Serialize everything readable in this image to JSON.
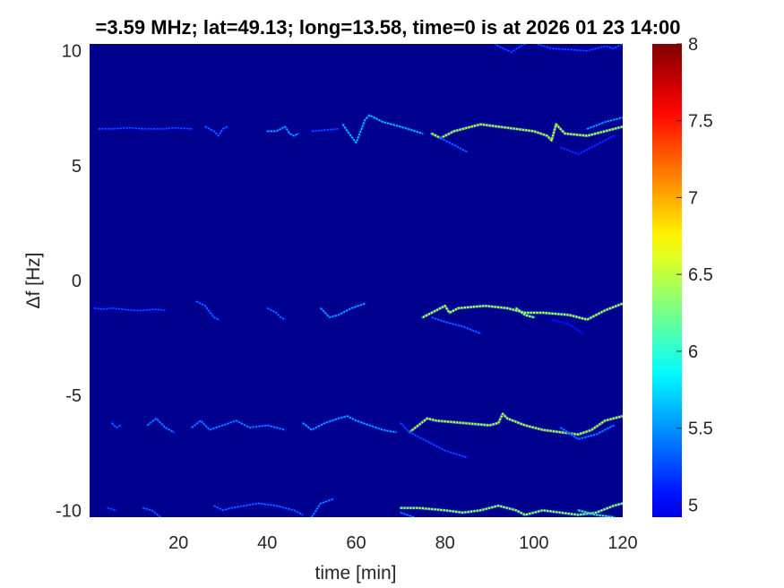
{
  "chart_data": {
    "type": "heatmap",
    "title": "=3.59 MHz;  lat=49.13; long=13.58, time=0 is at 2026 01 23 14:00",
    "xlabel": "time [min]",
    "ylabel": "Δf [Hz]",
    "xlim": [
      0,
      120
    ],
    "ylim": [
      -10.3,
      10.3
    ],
    "xticks": [
      "20",
      "40",
      "60",
      "80",
      "100",
      "120"
    ],
    "yticks": [
      "10",
      "5",
      "0",
      "-5",
      "-10"
    ],
    "colorbar": {
      "range": [
        4.92,
        8
      ],
      "ticks": [
        "8",
        "7.5",
        "7",
        "6.5",
        "6",
        "5.5",
        "5"
      ],
      "colormap": "jet"
    },
    "background_value": 4.95,
    "background_color": "#00008f",
    "traces": [
      {
        "name": "trace-upper-right",
        "points": [
          [
            90,
            10.5
          ],
          [
            92,
            10.2
          ],
          [
            95,
            9.95
          ],
          [
            97,
            10.2
          ],
          [
            99,
            10.4
          ],
          [
            104,
            10.1
          ],
          [
            112,
            10.0
          ],
          [
            116,
            10.2
          ],
          [
            118,
            10.1
          ],
          [
            120,
            10.3
          ]
        ],
        "intensity": 5.6
      },
      {
        "name": "trace-plus6-a",
        "points": [
          [
            2,
            6.6
          ],
          [
            5,
            6.6
          ],
          [
            9,
            6.65
          ],
          [
            12,
            6.6
          ],
          [
            17,
            6.6
          ],
          [
            19,
            6.65
          ],
          [
            23,
            6.6
          ]
        ],
        "intensity": 5.6
      },
      {
        "name": "trace-plus6-b",
        "points": [
          [
            26,
            6.7
          ],
          [
            28,
            6.5
          ],
          [
            29,
            6.3
          ],
          [
            30,
            6.6
          ],
          [
            31,
            6.7
          ]
        ],
        "intensity": 5.7
      },
      {
        "name": "trace-plus6-c",
        "points": [
          [
            40,
            6.5
          ],
          [
            42,
            6.5
          ],
          [
            44,
            6.7
          ],
          [
            45,
            6.4
          ],
          [
            46,
            6.3
          ],
          [
            47,
            6.4
          ]
        ],
        "intensity": 5.9
      },
      {
        "name": "trace-plus6-d",
        "points": [
          [
            50,
            6.5
          ],
          [
            53,
            6.55
          ],
          [
            56,
            6.6
          ]
        ],
        "intensity": 5.6
      },
      {
        "name": "trace-plus6-e",
        "points": [
          [
            57,
            6.8
          ],
          [
            58,
            6.5
          ],
          [
            60,
            6.0
          ],
          [
            61,
            6.5
          ],
          [
            62,
            7.0
          ],
          [
            63,
            7.2
          ],
          [
            66,
            6.9
          ],
          [
            70,
            6.7
          ],
          [
            75,
            6.4
          ]
        ],
        "intensity": 6.0
      },
      {
        "name": "trace-plus6-f",
        "points": [
          [
            77,
            6.4
          ],
          [
            79,
            6.2
          ],
          [
            82,
            6.5
          ],
          [
            88,
            6.8
          ],
          [
            92,
            6.7
          ],
          [
            96,
            6.6
          ],
          [
            100,
            6.5
          ],
          [
            103,
            6.3
          ],
          [
            104,
            6.1
          ],
          [
            105,
            6.8
          ],
          [
            107,
            6.4
          ],
          [
            112,
            6.3
          ],
          [
            116,
            6.5
          ],
          [
            120,
            6.7
          ]
        ],
        "intensity": 6.9
      },
      {
        "name": "trace-plus6-g",
        "points": [
          [
            79,
            6.2
          ],
          [
            82,
            5.9
          ],
          [
            85,
            5.6
          ]
        ],
        "intensity": 5.7
      },
      {
        "name": "trace-plus6-h",
        "points": [
          [
            112,
            6.6
          ],
          [
            116,
            6.9
          ],
          [
            120,
            7.1
          ]
        ],
        "intensity": 5.9
      },
      {
        "name": "trace-plus6-i",
        "points": [
          [
            106,
            5.8
          ],
          [
            110,
            5.5
          ],
          [
            114,
            5.9
          ],
          [
            118,
            6.3
          ]
        ],
        "intensity": 5.5
      },
      {
        "name": "trace-minus1-a",
        "points": [
          [
            1,
            -1.2
          ],
          [
            3,
            -1.25
          ],
          [
            5,
            -1.2
          ],
          [
            10,
            -1.3
          ],
          [
            12,
            -1.3
          ],
          [
            15,
            -1.25
          ],
          [
            17,
            -1.3
          ]
        ],
        "intensity": 5.6
      },
      {
        "name": "trace-minus1-b",
        "points": [
          [
            24,
            -0.9
          ],
          [
            26,
            -1.1
          ],
          [
            28,
            -1.6
          ],
          [
            29,
            -1.7
          ]
        ],
        "intensity": 5.7
      },
      {
        "name": "trace-minus1-c",
        "points": [
          [
            40,
            -1.2
          ],
          [
            42,
            -1.4
          ],
          [
            43,
            -1.6
          ],
          [
            44,
            -1.7
          ]
        ],
        "intensity": 5.7
      },
      {
        "name": "trace-minus1-d",
        "points": [
          [
            52,
            -1.2
          ],
          [
            54,
            -1.6
          ],
          [
            56,
            -1.5
          ],
          [
            59,
            -1.2
          ],
          [
            62,
            -1.0
          ]
        ],
        "intensity": 5.9
      },
      {
        "name": "trace-minus1-e",
        "points": [
          [
            75,
            -1.6
          ],
          [
            78,
            -1.3
          ],
          [
            80,
            -1.1
          ],
          [
            81,
            -1.4
          ],
          [
            83,
            -1.2
          ],
          [
            89,
            -1.1
          ],
          [
            94,
            -1.2
          ],
          [
            98,
            -1.4
          ],
          [
            102,
            -1.4
          ],
          [
            108,
            -1.5
          ],
          [
            112,
            -1.7
          ],
          [
            116,
            -1.3
          ],
          [
            120,
            -1.0
          ]
        ],
        "intensity": 6.8
      },
      {
        "name": "trace-minus1-f",
        "points": [
          [
            96,
            -1.2
          ],
          [
            98,
            -1.5
          ],
          [
            100,
            -1.6
          ]
        ],
        "intensity": 6.7
      },
      {
        "name": "trace-minus1-g",
        "points": [
          [
            77,
            -1.6
          ],
          [
            80,
            -1.8
          ],
          [
            84,
            -2.0
          ],
          [
            88,
            -2.3
          ]
        ],
        "intensity": 5.7
      },
      {
        "name": "trace-minus1-h",
        "points": [
          [
            104,
            -1.7
          ],
          [
            108,
            -1.9
          ],
          [
            111,
            -2.3
          ]
        ],
        "intensity": 5.4
      },
      {
        "name": "trace-minus6-a",
        "points": [
          [
            5,
            -6.2
          ],
          [
            6,
            -6.4
          ],
          [
            7,
            -6.3
          ]
        ],
        "intensity": 5.7
      },
      {
        "name": "trace-minus6-b",
        "points": [
          [
            13,
            -6.3
          ],
          [
            15,
            -6.0
          ],
          [
            17,
            -6.4
          ],
          [
            19,
            -6.6
          ]
        ],
        "intensity": 5.8
      },
      {
        "name": "trace-minus6-c",
        "points": [
          [
            23,
            -6.4
          ],
          [
            25,
            -6.1
          ],
          [
            27,
            -6.5
          ],
          [
            30,
            -6.3
          ],
          [
            33,
            -6.1
          ],
          [
            36,
            -6.4
          ],
          [
            40,
            -6.3
          ],
          [
            44,
            -6.5
          ]
        ],
        "intensity": 5.8
      },
      {
        "name": "trace-minus6-d",
        "points": [
          [
            48,
            -6.2
          ],
          [
            50,
            -6.5
          ],
          [
            53,
            -6.2
          ],
          [
            56,
            -6.0
          ],
          [
            58,
            -5.9
          ],
          [
            60,
            -6.1
          ],
          [
            63,
            -6.3
          ],
          [
            66,
            -6.5
          ],
          [
            69,
            -6.6
          ]
        ],
        "intensity": 5.9
      },
      {
        "name": "trace-minus6-e",
        "points": [
          [
            72,
            -6.6
          ],
          [
            74,
            -6.3
          ],
          [
            76,
            -6.0
          ],
          [
            78,
            -6.1
          ],
          [
            84,
            -6.2
          ],
          [
            90,
            -6.3
          ],
          [
            92,
            -6.2
          ],
          [
            93,
            -5.8
          ],
          [
            94,
            -6.0
          ],
          [
            98,
            -6.3
          ],
          [
            102,
            -6.5
          ],
          [
            106,
            -6.6
          ],
          [
            110,
            -6.7
          ],
          [
            113,
            -6.5
          ],
          [
            116,
            -6.1
          ],
          [
            120,
            -5.9
          ]
        ],
        "intensity": 6.9
      },
      {
        "name": "trace-minus6-f",
        "points": [
          [
            70,
            -6.2
          ],
          [
            72,
            -6.6
          ],
          [
            76,
            -7.0
          ],
          [
            80,
            -7.4
          ],
          [
            85,
            -7.7
          ]
        ],
        "intensity": 5.6
      },
      {
        "name": "trace-minus6-g",
        "points": [
          [
            106,
            -6.4
          ],
          [
            110,
            -6.9
          ],
          [
            114,
            -6.7
          ],
          [
            118,
            -6.3
          ]
        ],
        "intensity": 5.8
      },
      {
        "name": "trace-minus10-a",
        "points": [
          [
            4,
            -9.9
          ],
          [
            6,
            -10.0
          ]
        ],
        "intensity": 5.6
      },
      {
        "name": "trace-minus10-b",
        "points": [
          [
            12,
            -9.9
          ],
          [
            14,
            -10.0
          ],
          [
            16,
            -10.3
          ]
        ],
        "intensity": 5.7
      },
      {
        "name": "trace-minus10-c",
        "points": [
          [
            28,
            -9.8
          ],
          [
            30,
            -10.0
          ],
          [
            32,
            -9.9
          ],
          [
            35,
            -9.8
          ],
          [
            38,
            -9.7
          ],
          [
            42,
            -9.8
          ],
          [
            46,
            -10.0
          ],
          [
            48,
            -10.2
          ]
        ],
        "intensity": 5.7
      },
      {
        "name": "trace-minus10-d",
        "points": [
          [
            50,
            -10.3
          ],
          [
            52,
            -9.7
          ],
          [
            55,
            -9.5
          ]
        ],
        "intensity": 5.8
      },
      {
        "name": "trace-minus10-e",
        "points": [
          [
            70,
            -9.9
          ],
          [
            74,
            -9.9
          ],
          [
            80,
            -10.0
          ],
          [
            84,
            -10.1
          ],
          [
            88,
            -10.0
          ],
          [
            92,
            -9.8
          ],
          [
            96,
            -10.0
          ],
          [
            98,
            -10.2
          ],
          [
            102,
            -10.0
          ],
          [
            106,
            -10.1
          ],
          [
            110,
            -10.2
          ],
          [
            114,
            -10.1
          ],
          [
            118,
            -9.8
          ],
          [
            120,
            -9.7
          ]
        ],
        "intensity": 6.7
      },
      {
        "name": "trace-minus10-f",
        "points": [
          [
            70,
            -10.1
          ],
          [
            73,
            -10.3
          ]
        ],
        "intensity": 5.8
      },
      {
        "name": "trace-minus10-g",
        "points": [
          [
            110,
            -10.0
          ],
          [
            114,
            -10.2
          ],
          [
            118,
            -10.3
          ]
        ],
        "intensity": 6.4
      }
    ]
  }
}
